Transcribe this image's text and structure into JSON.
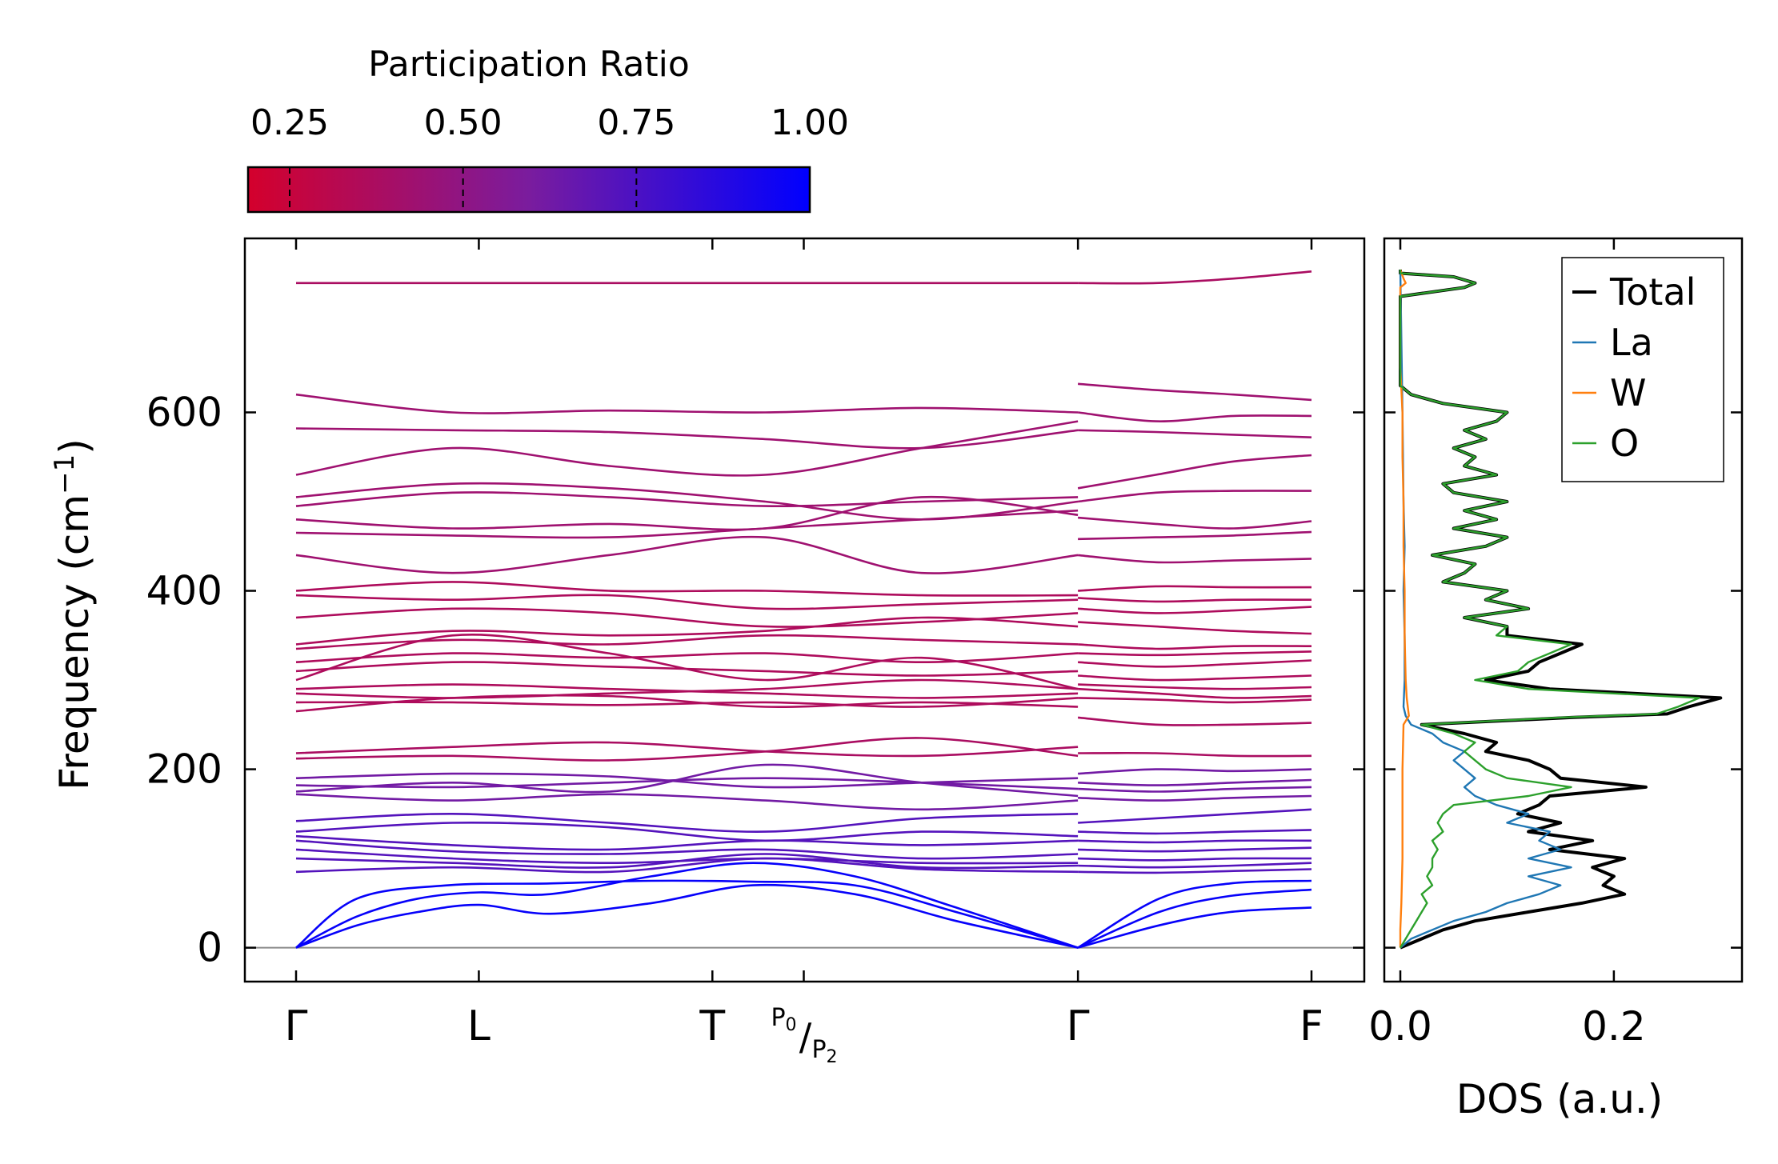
{
  "colorbar": {
    "title": "Participation Ratio",
    "ticks": [
      0.25,
      0.5,
      0.75,
      1.0
    ],
    "tick_labels": [
      "0.25",
      "0.50",
      "0.75",
      "1.00"
    ],
    "range": [
      0.19,
      1.0
    ],
    "color_low": "#d4002c",
    "color_mid": "#7a1c9e",
    "color_high": "#0000ff"
  },
  "chart_data": [
    {
      "type": "line",
      "title": "",
      "xlabel": "",
      "ylabel": "Frequency (cm⁻¹)",
      "ylim": [
        -38,
        795
      ],
      "y_ticks": [
        0,
        200,
        400,
        600
      ],
      "y_tick_labels": [
        "0",
        "200",
        "400",
        "600"
      ],
      "x_ticks": [
        {
          "pos": 0.0,
          "label": "Γ"
        },
        {
          "pos": 0.18,
          "label": "L"
        },
        {
          "pos": 0.41,
          "label": "T"
        },
        {
          "pos": 0.5,
          "label_num": "P",
          "label_sub0": "0",
          "label_slash": "/",
          "label_den": "P",
          "label_sub2": "2"
        },
        {
          "pos": 0.77,
          "label": "Γ"
        },
        {
          "pos": 1.0,
          "label": "F"
        }
      ],
      "path_segments": [
        [
          0.0,
          0.77
        ],
        [
          0.77,
          1.0
        ]
      ],
      "acoustic_branches": [
        {
          "name": "acoustic-1",
          "x": [
            0,
            0.06,
            0.15,
            0.25,
            0.35,
            0.45,
            0.55,
            0.65,
            0.77
          ],
          "y": [
            0,
            55,
            70,
            72,
            75,
            74,
            70,
            40,
            0
          ]
        },
        {
          "name": "acoustic-2",
          "x": [
            0,
            0.06,
            0.12,
            0.18,
            0.25,
            0.35,
            0.45,
            0.55,
            0.65,
            0.77
          ],
          "y": [
            0,
            35,
            55,
            62,
            60,
            80,
            95,
            80,
            45,
            0
          ]
        },
        {
          "name": "acoustic-3",
          "x": [
            0,
            0.06,
            0.12,
            0.18,
            0.25,
            0.35,
            0.45,
            0.55,
            0.65,
            0.77
          ],
          "y": [
            0,
            25,
            40,
            48,
            38,
            50,
            70,
            60,
            30,
            0
          ]
        },
        {
          "name": "acoustic-4",
          "x": [
            0.77,
            0.85,
            0.92,
            1.0
          ],
          "y": [
            0,
            40,
            58,
            65
          ]
        },
        {
          "name": "acoustic-5",
          "x": [
            0.77,
            0.85,
            0.92,
            1.0
          ],
          "y": [
            0,
            25,
            40,
            45
          ]
        },
        {
          "name": "acoustic-6",
          "x": [
            0.77,
            0.85,
            0.92,
            1.0
          ],
          "y": [
            0,
            55,
            72,
            75
          ]
        }
      ],
      "optical_branches_seg1": [
        [
          745,
          745,
          745,
          745,
          745,
          745
        ],
        [
          620,
          600,
          602,
          600,
          605,
          600
        ],
        [
          582,
          580,
          578,
          570,
          560,
          580
        ],
        [
          530,
          560,
          540,
          530,
          560,
          590
        ],
        [
          505,
          520,
          515,
          500,
          480,
          500
        ],
        [
          495,
          510,
          505,
          495,
          500,
          505
        ],
        [
          480,
          470,
          475,
          470,
          505,
          485
        ],
        [
          465,
          462,
          460,
          470,
          480,
          490
        ],
        [
          440,
          420,
          440,
          460,
          420,
          440
        ],
        [
          400,
          410,
          400,
          400,
          395,
          395
        ],
        [
          395,
          390,
          395,
          380,
          385,
          390
        ],
        [
          370,
          380,
          375,
          360,
          365,
          375
        ],
        [
          340,
          355,
          350,
          355,
          370,
          360
        ],
        [
          335,
          345,
          340,
          350,
          345,
          340
        ],
        [
          320,
          330,
          325,
          330,
          320,
          330
        ],
        [
          310,
          320,
          315,
          310,
          305,
          310
        ],
        [
          300,
          350,
          330,
          300,
          325,
          290
        ],
        [
          290,
          295,
          290,
          285,
          280,
          285
        ],
        [
          285,
          280,
          285,
          290,
          300,
          290
        ],
        [
          275,
          275,
          272,
          275,
          270,
          280
        ],
        [
          265,
          280,
          282,
          270,
          275,
          270
        ],
        [
          218,
          225,
          230,
          220,
          215,
          225
        ],
        [
          212,
          215,
          210,
          220,
          235,
          215
        ],
        [
          190,
          195,
          192,
          180,
          185,
          190
        ],
        [
          182,
          180,
          185,
          190,
          185,
          178
        ],
        [
          175,
          185,
          175,
          205,
          185,
          170
        ],
        [
          172,
          165,
          172,
          165,
          155,
          165
        ],
        [
          142,
          150,
          140,
          130,
          145,
          150
        ],
        [
          130,
          140,
          135,
          120,
          130,
          125
        ],
        [
          125,
          115,
          110,
          120,
          115,
          120
        ],
        [
          120,
          108,
          105,
          110,
          100,
          105
        ],
        [
          110,
          100,
          95,
          100,
          95,
          95
        ],
        [
          100,
          95,
          90,
          105,
          90,
          92
        ],
        [
          85,
          90,
          85,
          100,
          88,
          85
        ]
      ],
      "optical_branches_seg2": [
        [
          745,
          745,
          750,
          758
        ],
        [
          632,
          625,
          620,
          614
        ],
        [
          600,
          590,
          596,
          596
        ],
        [
          580,
          578,
          575,
          572
        ],
        [
          515,
          530,
          545,
          552
        ],
        [
          500,
          510,
          512,
          512
        ],
        [
          482,
          475,
          470,
          478
        ],
        [
          458,
          460,
          462,
          466
        ],
        [
          440,
          432,
          434,
          436
        ],
        [
          400,
          405,
          404,
          404
        ],
        [
          392,
          388,
          390,
          390
        ],
        [
          380,
          375,
          378,
          382
        ],
        [
          365,
          360,
          355,
          352
        ],
        [
          340,
          335,
          338,
          338
        ],
        [
          330,
          328,
          330,
          332
        ],
        [
          320,
          315,
          318,
          322
        ],
        [
          305,
          300,
          302,
          305
        ],
        [
          295,
          292,
          290,
          292
        ],
        [
          290,
          285,
          280,
          282
        ],
        [
          280,
          278,
          275,
          278
        ],
        [
          258,
          250,
          250,
          252
        ],
        [
          218,
          218,
          215,
          215
        ],
        [
          195,
          200,
          198,
          200
        ],
        [
          185,
          182,
          185,
          188
        ],
        [
          178,
          175,
          178,
          180
        ],
        [
          168,
          165,
          168,
          170
        ],
        [
          140,
          145,
          150,
          155
        ],
        [
          130,
          128,
          130,
          132
        ],
        [
          120,
          118,
          120,
          120
        ],
        [
          110,
          108,
          110,
          112
        ],
        [
          100,
          98,
          100,
          100
        ],
        [
          92,
          90,
          92,
          95
        ],
        [
          85,
          84,
          86,
          88
        ]
      ],
      "zero_line": 0
    },
    {
      "type": "line",
      "xlabel": "DOS (a.u.)",
      "ylabel": "",
      "xlim": [
        -0.015,
        0.32
      ],
      "ylim": [
        -38,
        795
      ],
      "x_ticks": [
        0.0,
        0.2
      ],
      "x_tick_labels": [
        "0.0",
        "0.2"
      ],
      "legend_position": "top-right",
      "series": [
        {
          "name": "Total",
          "color": "#000000",
          "y": [
            0,
            10,
            20,
            30,
            40,
            50,
            60,
            70,
            80,
            90,
            100,
            110,
            120,
            130,
            140,
            150,
            160,
            170,
            180,
            190,
            200,
            210,
            220,
            230,
            240,
            250,
            258,
            262,
            270,
            280,
            290,
            300,
            310,
            320,
            330,
            340,
            350,
            360,
            370,
            380,
            390,
            400,
            410,
            420,
            430,
            440,
            450,
            460,
            470,
            480,
            490,
            500,
            510,
            520,
            530,
            540,
            550,
            560,
            570,
            580,
            590,
            600,
            610,
            620,
            630,
            680,
            730,
            740,
            745,
            752,
            756,
            760
          ],
          "x": [
            0.0,
            0.02,
            0.04,
            0.07,
            0.12,
            0.17,
            0.21,
            0.19,
            0.2,
            0.18,
            0.21,
            0.14,
            0.18,
            0.12,
            0.15,
            0.11,
            0.13,
            0.14,
            0.23,
            0.15,
            0.14,
            0.12,
            0.08,
            0.09,
            0.06,
            0.02,
            0.16,
            0.25,
            0.27,
            0.3,
            0.14,
            0.08,
            0.12,
            0.13,
            0.15,
            0.17,
            0.1,
            0.1,
            0.06,
            0.12,
            0.08,
            0.1,
            0.04,
            0.06,
            0.07,
            0.03,
            0.08,
            0.1,
            0.05,
            0.09,
            0.06,
            0.1,
            0.05,
            0.04,
            0.09,
            0.06,
            0.07,
            0.05,
            0.08,
            0.06,
            0.09,
            0.1,
            0.04,
            0.01,
            0.0,
            0.0,
            0.0,
            0.06,
            0.07,
            0.05,
            0.0,
            0.0
          ]
        },
        {
          "name": "La",
          "color": "#1f77b4",
          "y": [
            0,
            10,
            20,
            30,
            40,
            50,
            60,
            70,
            80,
            90,
            100,
            110,
            120,
            130,
            140,
            150,
            160,
            170,
            180,
            190,
            200,
            210,
            220,
            230,
            240,
            250,
            260,
            270,
            300,
            350,
            400,
            450,
            500,
            600,
            760
          ],
          "x": [
            0.0,
            0.01,
            0.03,
            0.05,
            0.08,
            0.1,
            0.13,
            0.15,
            0.12,
            0.16,
            0.12,
            0.15,
            0.13,
            0.14,
            0.1,
            0.12,
            0.09,
            0.07,
            0.06,
            0.07,
            0.06,
            0.05,
            0.06,
            0.04,
            0.03,
            0.01,
            0.005,
            0.003,
            0.004,
            0.004,
            0.003,
            0.004,
            0.003,
            0.002,
            0.0
          ]
        },
        {
          "name": "W",
          "color": "#ff7f0e",
          "y": [
            0,
            20,
            50,
            100,
            150,
            200,
            250,
            260,
            280,
            300,
            350,
            400,
            450,
            500,
            550,
            600,
            650,
            700,
            740,
            745,
            750,
            760
          ],
          "x": [
            0.0,
            0.0,
            0.001,
            0.002,
            0.002,
            0.002,
            0.003,
            0.008,
            0.006,
            0.005,
            0.004,
            0.004,
            0.003,
            0.003,
            0.002,
            0.002,
            0.0,
            0.0,
            0.0,
            0.005,
            0.003,
            0.0
          ]
        },
        {
          "name": "O",
          "color": "#2ca02c",
          "y": [
            0,
            10,
            20,
            30,
            40,
            50,
            60,
            70,
            80,
            90,
            100,
            110,
            120,
            130,
            140,
            150,
            160,
            170,
            180,
            190,
            200,
            210,
            220,
            230,
            240,
            250,
            258,
            262,
            270,
            280,
            290,
            300,
            310,
            320,
            330,
            340,
            350,
            360,
            370,
            380,
            390,
            400,
            410,
            420,
            430,
            440,
            450,
            460,
            470,
            480,
            490,
            500,
            510,
            520,
            530,
            540,
            550,
            560,
            570,
            580,
            590,
            600,
            610,
            620,
            630,
            680,
            730,
            740,
            745,
            752,
            756,
            760
          ],
          "x": [
            0.0,
            0.005,
            0.01,
            0.015,
            0.02,
            0.025,
            0.02,
            0.03,
            0.025,
            0.03,
            0.03,
            0.035,
            0.03,
            0.04,
            0.035,
            0.04,
            0.05,
            0.12,
            0.16,
            0.1,
            0.08,
            0.07,
            0.06,
            0.07,
            0.05,
            0.02,
            0.15,
            0.24,
            0.26,
            0.28,
            0.12,
            0.07,
            0.11,
            0.12,
            0.14,
            0.16,
            0.09,
            0.1,
            0.06,
            0.12,
            0.08,
            0.1,
            0.04,
            0.06,
            0.07,
            0.03,
            0.08,
            0.1,
            0.05,
            0.09,
            0.06,
            0.1,
            0.05,
            0.04,
            0.09,
            0.06,
            0.07,
            0.05,
            0.08,
            0.06,
            0.09,
            0.1,
            0.04,
            0.01,
            0.0,
            0.0,
            0.0,
            0.06,
            0.07,
            0.05,
            0.0,
            0.0
          ]
        }
      ]
    }
  ]
}
